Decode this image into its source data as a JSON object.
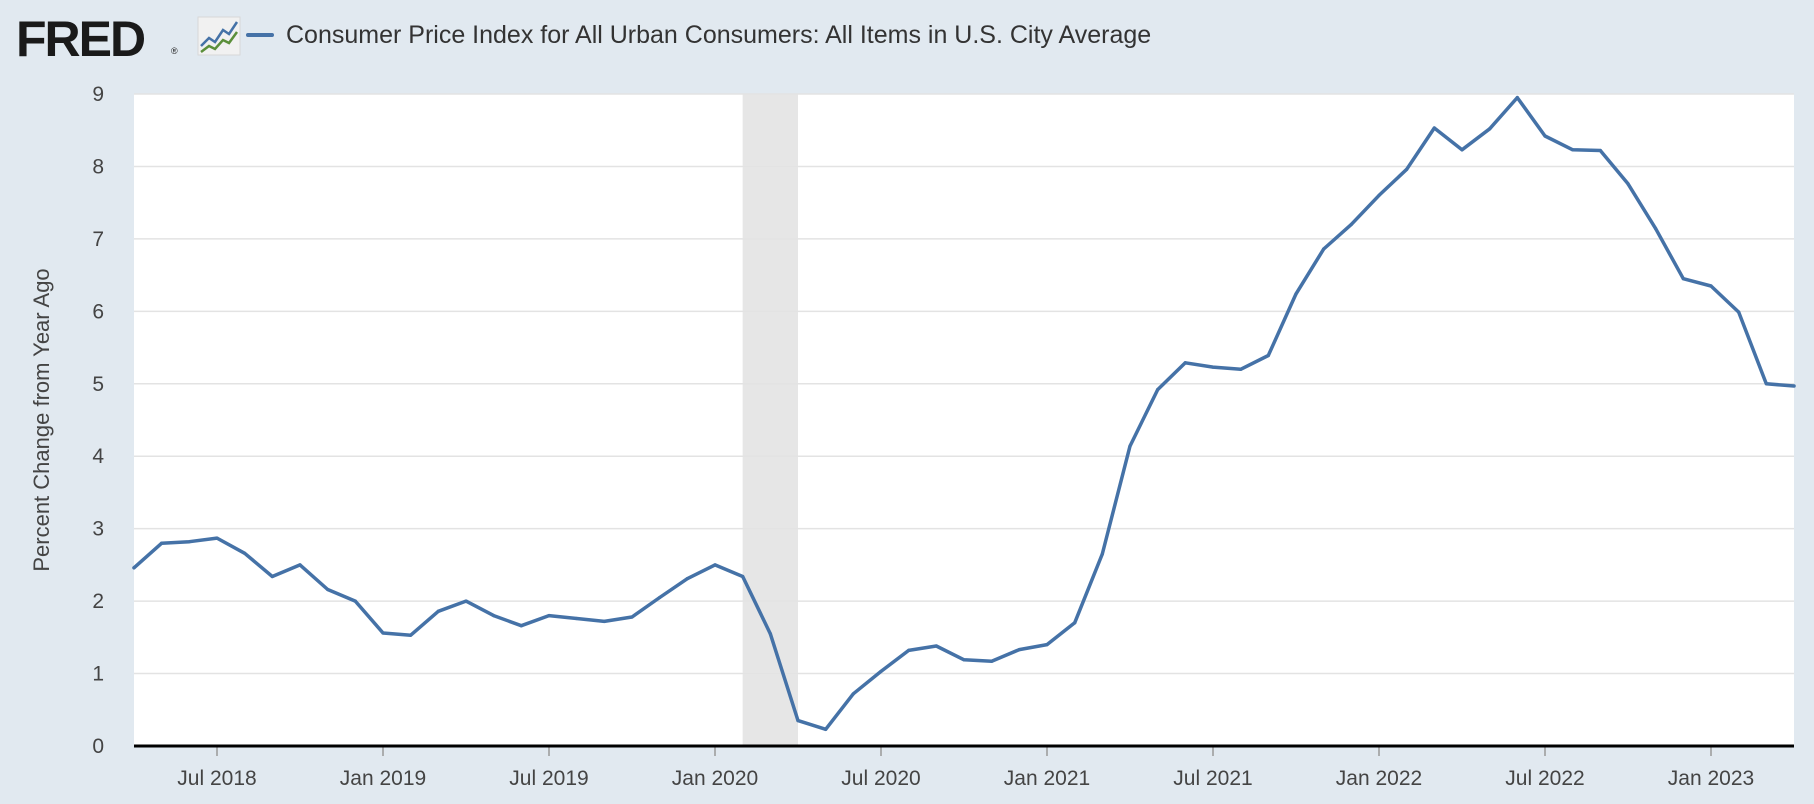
{
  "header": {
    "logo_text": "FRED",
    "logo_registered": "®",
    "series_title": "Consumer Price Index for All Urban Consumers: All Items in U.S. City Average"
  },
  "colors": {
    "series": "#4572a7",
    "recession": "#e6e6e6",
    "background": "#e1e9f0",
    "plot": "#ffffff"
  },
  "chart_data": {
    "type": "line",
    "title": "Consumer Price Index for All Urban Consumers: All Items in U.S. City Average",
    "xlabel": "",
    "ylabel": "Percent Change from Year Ago",
    "ylim": [
      0,
      9
    ],
    "yticks": [
      0,
      1,
      2,
      3,
      4,
      5,
      6,
      7,
      8,
      9
    ],
    "xticks": [
      "Jul 2018",
      "Jan 2019",
      "Jul 2019",
      "Jan 2020",
      "Jul 2020",
      "Jan 2021",
      "Jul 2021",
      "Jan 2022",
      "Jul 2022",
      "Jan 2023"
    ],
    "x_start": "2018-04",
    "x_end": "2023-04",
    "grid": true,
    "recession_shading": [
      {
        "start": "2020-02",
        "end": "2020-04"
      }
    ],
    "series": [
      {
        "name": "Consumer Price Index for All Urban Consumers: All Items in U.S. City Average",
        "x": [
          "2018-04",
          "2018-05",
          "2018-06",
          "2018-07",
          "2018-08",
          "2018-09",
          "2018-10",
          "2018-11",
          "2018-12",
          "2019-01",
          "2019-02",
          "2019-03",
          "2019-04",
          "2019-05",
          "2019-06",
          "2019-07",
          "2019-08",
          "2019-09",
          "2019-10",
          "2019-11",
          "2019-12",
          "2020-01",
          "2020-02",
          "2020-03",
          "2020-04",
          "2020-05",
          "2020-06",
          "2020-07",
          "2020-08",
          "2020-09",
          "2020-10",
          "2020-11",
          "2020-12",
          "2021-01",
          "2021-02",
          "2021-03",
          "2021-04",
          "2021-05",
          "2021-06",
          "2021-07",
          "2021-08",
          "2021-09",
          "2021-10",
          "2021-11",
          "2021-12",
          "2022-01",
          "2022-02",
          "2022-03",
          "2022-04",
          "2022-05",
          "2022-06",
          "2022-07",
          "2022-08",
          "2022-09",
          "2022-10",
          "2022-11",
          "2022-12",
          "2023-01",
          "2023-02",
          "2023-03",
          "2023-04"
        ],
        "values": [
          2.46,
          2.8,
          2.82,
          2.87,
          2.66,
          2.34,
          2.5,
          2.16,
          2.0,
          1.56,
          1.53,
          1.86,
          2.0,
          1.8,
          1.66,
          1.8,
          1.76,
          1.72,
          1.78,
          2.05,
          2.31,
          2.5,
          2.34,
          1.55,
          0.35,
          0.23,
          0.72,
          1.03,
          1.32,
          1.38,
          1.19,
          1.17,
          1.33,
          1.4,
          1.7,
          2.65,
          4.14,
          4.92,
          5.29,
          5.23,
          5.2,
          5.39,
          6.24,
          6.86,
          7.2,
          7.6,
          7.96,
          8.53,
          8.23,
          8.52,
          8.95,
          8.42,
          8.23,
          8.22,
          7.76,
          7.14,
          6.45,
          6.35,
          5.99,
          5.0,
          4.97
        ]
      }
    ]
  }
}
